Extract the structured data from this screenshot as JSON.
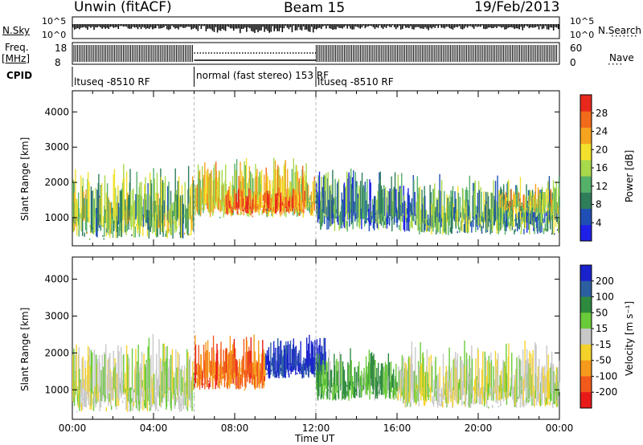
{
  "header": {
    "station": "Unwin (fitACF)",
    "beam": "Beam 15",
    "date": "19/Feb/2013"
  },
  "strips": {
    "nsky": {
      "label": "N.Sky",
      "top_tick": "10^5",
      "bottom_tick": "10^0",
      "right_top_tick": "10^5",
      "right_bottom_tick": "10^0",
      "right_label": "N.Search"
    },
    "freq": {
      "label": "Freq.",
      "unit": "[MHz]",
      "top_tick": "18",
      "bottom_tick": "8",
      "right_top_tick": "60",
      "right_bottom_tick": "0",
      "right_label": "Nave"
    },
    "cpid": {
      "label": "CPID",
      "segments": [
        {
          "label": "ltuseq -8510 RF",
          "start": 0.0,
          "end": 6.0
        },
        {
          "label": "normal (fast stereo) 153 RF",
          "start": 6.0,
          "end": 12.0
        },
        {
          "label": "ltuseq -8510 RF",
          "start": 12.0,
          "end": 24.0
        }
      ]
    }
  },
  "chart_data": [
    {
      "type": "heatmap",
      "panel": "power",
      "ylabel": "Slant Range [km]",
      "xlabel": "Time UT",
      "xlim": [
        0,
        24
      ],
      "ylim": [
        200,
        4600
      ],
      "yticks": [
        "1000",
        "2000",
        "3000",
        "4000"
      ],
      "colorbar": {
        "label": "Power [dB]",
        "ticks": [
          "4",
          "8",
          "12",
          "16",
          "20",
          "24",
          "28"
        ],
        "range": [
          0,
          31
        ],
        "colors": [
          "#1e20e8",
          "#1f4fb5",
          "#2e7d5b",
          "#55b06a",
          "#a8d84b",
          "#f2e12c",
          "#f6a31f",
          "#f26b1b",
          "#e8281c"
        ]
      },
      "regions": [
        {
          "t0": 0.0,
          "t1": 6.0,
          "r0": 400,
          "r1": 2600,
          "level": 0.45
        },
        {
          "t0": 6.0,
          "t1": 12.0,
          "r0": 1000,
          "r1": 2800,
          "level": 0.6
        },
        {
          "t0": 7.5,
          "t1": 11.5,
          "r0": 1100,
          "r1": 1900,
          "level": 0.8
        },
        {
          "t0": 12.0,
          "t1": 17.0,
          "r0": 600,
          "r1": 2500,
          "level": 0.3
        },
        {
          "t0": 17.0,
          "t1": 24.0,
          "r0": 500,
          "r1": 2300,
          "level": 0.35
        },
        {
          "t0": 21.0,
          "t1": 24.0,
          "r0": 1100,
          "r1": 2000,
          "level": 0.55
        }
      ]
    },
    {
      "type": "heatmap",
      "panel": "velocity",
      "ylabel": "Slant Range [km]",
      "xlabel": "Time UT",
      "xlim": [
        0,
        24
      ],
      "ylim": [
        200,
        4600
      ],
      "yticks": [
        "1000",
        "2000",
        "3000",
        "4000"
      ],
      "xticks": [
        "00:00",
        "04:00",
        "08:00",
        "12:00",
        "16:00",
        "20:00",
        "00:00"
      ],
      "colorbar": {
        "label": "Velocity [m s⁻¹]",
        "ticks": [
          "200",
          "100",
          "50",
          "15",
          "-15",
          "-50",
          "-100",
          "-200"
        ],
        "range": [
          -250,
          250
        ],
        "colors": [
          "#1a22cc",
          "#2c5fa0",
          "#2e8a3e",
          "#6acb3a",
          "#c8c8c8",
          "#f5d22a",
          "#f59a1c",
          "#f25a1b",
          "#e81a1a"
        ]
      },
      "regions": [
        {
          "t0": 0.0,
          "t1": 6.0,
          "r0": 400,
          "r1": 2600,
          "level": 0.0
        },
        {
          "t0": 6.0,
          "t1": 9.5,
          "r0": 1000,
          "r1": 2600,
          "level": -0.6
        },
        {
          "t0": 9.5,
          "t1": 12.5,
          "r0": 1300,
          "r1": 2600,
          "level": 0.85
        },
        {
          "t0": 12.0,
          "t1": 16.0,
          "r0": 700,
          "r1": 2200,
          "level": 0.3
        },
        {
          "t0": 16.0,
          "t1": 24.0,
          "r0": 500,
          "r1": 2400,
          "level": 0.0
        }
      ]
    }
  ]
}
